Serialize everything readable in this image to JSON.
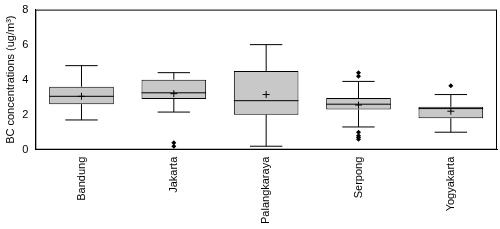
{
  "chart_data": {
    "type": "box",
    "y_label": "BC concentrations (ug/m³)",
    "categories": [
      "Bandung",
      "Jakarta",
      "Palangkaraya",
      "Serpong",
      "Yogyakarta"
    ],
    "whisker_low": [
      1.7,
      2.15,
      0.2,
      1.3,
      1.0
    ],
    "q1": [
      2.6,
      2.9,
      2.0,
      2.3,
      1.8
    ],
    "median": [
      3.05,
      3.25,
      2.8,
      2.6,
      2.35
    ],
    "q3": [
      3.6,
      4.0,
      4.5,
      2.95,
      2.45
    ],
    "whisker_high": [
      4.8,
      4.4,
      6.0,
      3.9,
      3.15
    ],
    "mean": [
      3.05,
      3.2,
      3.15,
      2.55,
      2.2
    ],
    "outliers": [
      [],
      [
        0.4,
        0.2
      ],
      [],
      [
        4.4,
        4.2,
        1.0,
        0.8,
        0.7,
        0.6
      ],
      [
        3.65
      ]
    ],
    "color": "#c8c8c8",
    "ylim": [
      0,
      8
    ],
    "yticks": [
      0,
      2,
      4,
      6,
      8
    ],
    "grid": false
  }
}
